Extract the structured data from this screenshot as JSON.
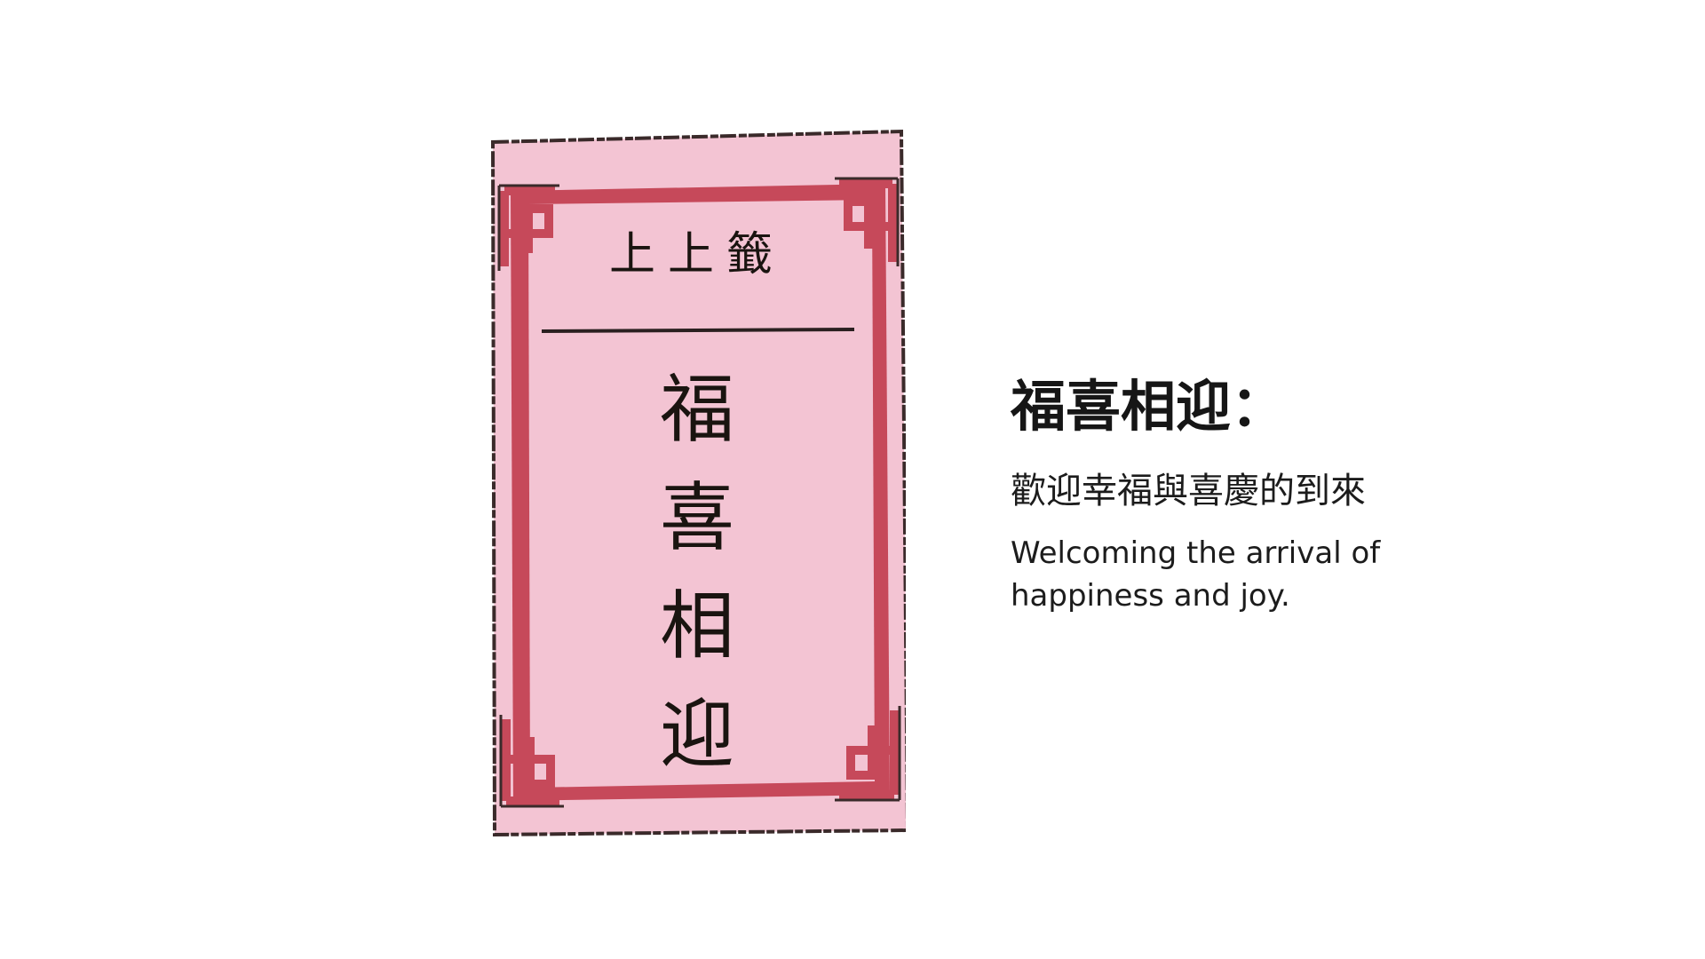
{
  "slip": {
    "header": "上上籤",
    "chars": [
      "福",
      "喜",
      "相",
      "迎"
    ]
  },
  "info": {
    "title": "福喜相迎：",
    "chinese_desc": "歡迎幸福與喜慶的到來",
    "english_desc": "Welcoming the arrival of happiness and joy."
  },
  "colors": {
    "slip_fill": "#f3c4d3",
    "slip_outline": "#3a2a2a",
    "border_red": "#c6495a",
    "inner_fill": "#f3c4d3",
    "text": "#1a1410",
    "background": "#ffffff"
  }
}
